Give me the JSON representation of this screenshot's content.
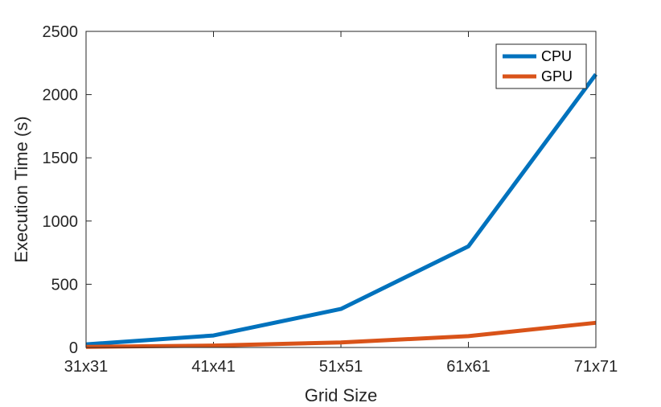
{
  "chart_data": {
    "type": "line",
    "categories": [
      "31x31",
      "41x41",
      "51x51",
      "61x61",
      "71x71"
    ],
    "series": [
      {
        "name": "CPU",
        "values": [
          25,
          95,
          305,
          800,
          2160
        ],
        "color": "#0072BD"
      },
      {
        "name": "GPU",
        "values": [
          5,
          15,
          40,
          90,
          195
        ],
        "color": "#D95319"
      }
    ],
    "title": "",
    "xlabel": "Grid Size",
    "ylabel": "Execution Time (s)",
    "ylim": [
      0,
      2500
    ],
    "yticks": [
      0,
      500,
      1000,
      1500,
      2000,
      2500
    ],
    "ytick_labels": [
      "0",
      "500",
      "1000",
      "1500",
      "2000",
      "2500"
    ],
    "grid": false,
    "legend_position": "top-right"
  }
}
